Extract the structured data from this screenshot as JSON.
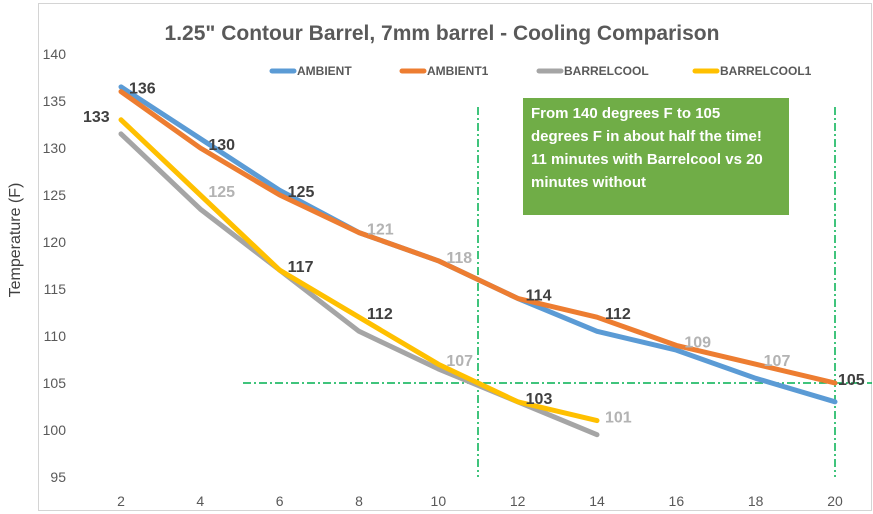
{
  "chart_data": {
    "type": "line",
    "title": "1.25\" Contour Barrel, 7mm barrel - Cooling Comparison",
    "xlabel": "",
    "ylabel": "Temperature (F)",
    "xlim": [
      2,
      20
    ],
    "ylim": [
      95,
      140
    ],
    "x_ticks": [
      2,
      4,
      6,
      8,
      10,
      12,
      14,
      16,
      18,
      20
    ],
    "y_ticks": [
      95,
      100,
      105,
      110,
      115,
      120,
      125,
      130,
      135,
      140
    ],
    "grid": false,
    "legend_position": "top",
    "series": [
      {
        "name": "AMBIENT",
        "color": "#5b9bd5",
        "x": [
          2,
          4,
          6,
          8,
          10,
          12,
          14,
          16,
          18,
          20
        ],
        "y": [
          136.5,
          131,
          125.5,
          121,
          118,
          114,
          110.5,
          108.5,
          105.5,
          103
        ]
      },
      {
        "name": "AMBIENT1",
        "color": "#ed7d31",
        "x": [
          2,
          4,
          6,
          8,
          10,
          12,
          14,
          16,
          18,
          20
        ],
        "y": [
          136,
          130,
          125,
          121,
          118,
          114,
          112,
          109,
          107,
          105
        ]
      },
      {
        "name": "BARRELCOOL",
        "color": "#a5a5a5",
        "x": [
          2,
          4,
          6,
          8,
          10,
          12,
          14
        ],
        "y": [
          131.5,
          123.5,
          117,
          110.5,
          106.5,
          103,
          99.5
        ]
      },
      {
        "name": "BARRELCOOL1",
        "color": "#ffc000",
        "x": [
          2,
          4,
          6,
          8,
          10,
          12,
          14
        ],
        "y": [
          133,
          125,
          117,
          112,
          107,
          103,
          101
        ]
      }
    ],
    "data_labels": [
      {
        "x": 2,
        "y": 136,
        "text": "136",
        "faded": false
      },
      {
        "x": 4,
        "y": 130,
        "text": "130",
        "faded": false
      },
      {
        "x": 6,
        "y": 125,
        "text": "125",
        "faded": false
      },
      {
        "x": 8,
        "y": 121,
        "text": "121",
        "faded": true
      },
      {
        "x": 10,
        "y": 118,
        "text": "118",
        "faded": true
      },
      {
        "x": 12,
        "y": 114,
        "text": "114",
        "faded": false
      },
      {
        "x": 14,
        "y": 112,
        "text": "112",
        "faded": false
      },
      {
        "x": 16,
        "y": 109,
        "text": "109",
        "faded": true
      },
      {
        "x": 18,
        "y": 107,
        "text": "107",
        "faded": true
      },
      {
        "x": 20,
        "y": 105,
        "text": "105",
        "faded": false
      },
      {
        "x": 2,
        "y": 133,
        "text": "133",
        "faded": false
      },
      {
        "x": 4,
        "y": 125,
        "text": "125",
        "faded": true
      },
      {
        "x": 6,
        "y": 117,
        "text": "117",
        "faded": false
      },
      {
        "x": 8,
        "y": 112,
        "text": "112",
        "faded": false
      },
      {
        "x": 10,
        "y": 107,
        "text": "107",
        "faded": true
      },
      {
        "x": 12,
        "y": 103,
        "text": "103",
        "faded": false
      },
      {
        "x": 14,
        "y": 101,
        "text": "101",
        "faded": true
      }
    ],
    "reference_lines": {
      "color": "#00b050",
      "vertical_x": [
        11,
        20
      ],
      "horizontal_y": 105
    },
    "annotation": {
      "text_lines": [
        "From 140 degrees F to 105",
        "degrees F in about half the time!",
        "11 minutes with Barrelcool vs 20",
        "minutes without"
      ],
      "background": "#70ad47"
    }
  }
}
